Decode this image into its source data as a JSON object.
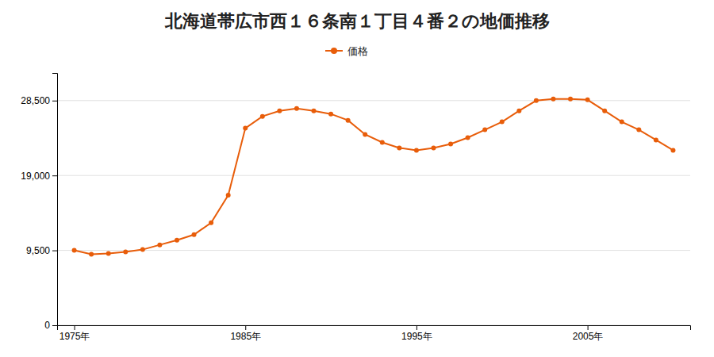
{
  "chart_data": {
    "type": "line",
    "title": "北海道帯広市西１６条南１丁目４番２の地価推移",
    "x": [
      1975,
      1976,
      1977,
      1978,
      1979,
      1980,
      1981,
      1982,
      1983,
      1984,
      1985,
      1986,
      1987,
      1988,
      1989,
      1990,
      1991,
      1992,
      1993,
      1994,
      1995,
      1996,
      1997,
      1998,
      1999,
      2000,
      2001,
      2002,
      2003,
      2004,
      2005,
      2006,
      2007,
      2008,
      2009,
      2010
    ],
    "series": [
      {
        "name": "価格",
        "color": "#e85d0a",
        "marker": "circle",
        "values": [
          9500,
          9000,
          9100,
          9300,
          9600,
          10200,
          10800,
          11500,
          13000,
          16500,
          25000,
          26500,
          27200,
          27500,
          27200,
          26800,
          26000,
          24200,
          23200,
          22500,
          22200,
          22500,
          23000,
          23800,
          24800,
          25800,
          27200,
          28500,
          28700,
          28700,
          28600,
          27200,
          25800,
          24800,
          23500,
          22200
        ]
      }
    ],
    "xlim": [
      1974,
      2011
    ],
    "xticks": [
      {
        "value": 1975,
        "label": "1975年"
      },
      {
        "value": 1985,
        "label": "1985年"
      },
      {
        "value": 1995,
        "label": "1995年"
      },
      {
        "value": 2005,
        "label": "2005年"
      }
    ],
    "ylim": [
      0,
      32000
    ],
    "yticks": [
      0,
      {
        "value": 9500,
        "label": "9,500"
      },
      {
        "value": 19000,
        "label": "19,000"
      },
      {
        "value": 28500,
        "label": "28,500"
      }
    ],
    "grid": true,
    "legend": "top"
  }
}
